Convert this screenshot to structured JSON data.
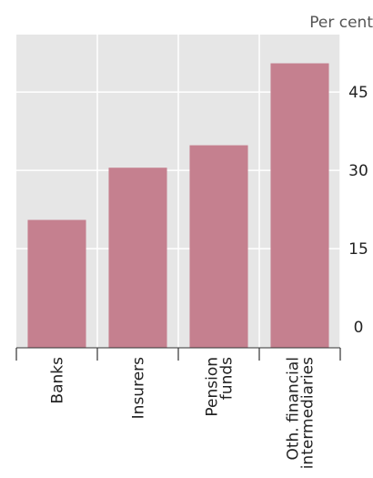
{
  "chart_data": {
    "type": "bar",
    "unit_label": "Per cent",
    "categories": [
      [
        "Banks"
      ],
      [
        "Insurers"
      ],
      [
        "Pension",
        "funds"
      ],
      [
        "Oth. financial",
        "intermediaries"
      ]
    ],
    "values": [
      20.5,
      30.5,
      34.8,
      50.5
    ],
    "ylim": [
      -4,
      56
    ],
    "yticks": [
      "0",
      "15",
      "30",
      "45"
    ],
    "grid": true,
    "colors": {
      "bar": "#c5808f",
      "plot_background": "#e6e6e6",
      "grid": "#ffffff",
      "axis": "#333333",
      "text": "#222222",
      "unit_text": "#555555"
    }
  }
}
